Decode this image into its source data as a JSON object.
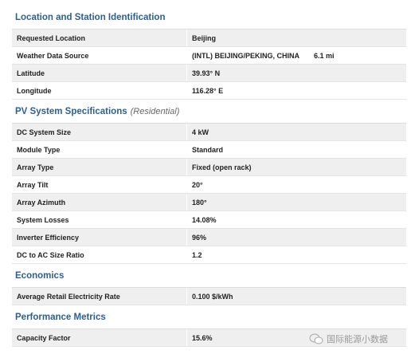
{
  "sections": [
    {
      "title": "Location and Station Identification",
      "rows": [
        [
          "Requested Location",
          "Beijing"
        ],
        [
          "Weather Data Source",
          "(INTL) BEIJING/PEKING, CHINA",
          "6.1 mi"
        ],
        [
          "Latitude",
          "39.93° N"
        ],
        [
          "Longitude",
          "116.28° E"
        ]
      ]
    },
    {
      "title": "PV System Specifications",
      "subtitle": "(Residential)",
      "rows": [
        [
          "DC System Size",
          "4 kW"
        ],
        [
          "Module Type",
          "Standard"
        ],
        [
          "Array Type",
          "Fixed (open rack)"
        ],
        [
          "Array Tilt",
          "20°"
        ],
        [
          "Array Azimuth",
          "180°"
        ],
        [
          "System Losses",
          "14.08%"
        ],
        [
          "Inverter Efficiency",
          "96%"
        ],
        [
          "DC to AC Size Ratio",
          "1.2"
        ]
      ]
    },
    {
      "title": "Economics",
      "rows": [
        [
          "Average Retail Electricity Rate",
          "0.100 $/kWh"
        ]
      ]
    },
    {
      "title": "Performance Metrics",
      "rows": [
        [
          "Capacity Factor",
          "15.6%"
        ]
      ]
    }
  ],
  "watermark": "国际能源小数据"
}
